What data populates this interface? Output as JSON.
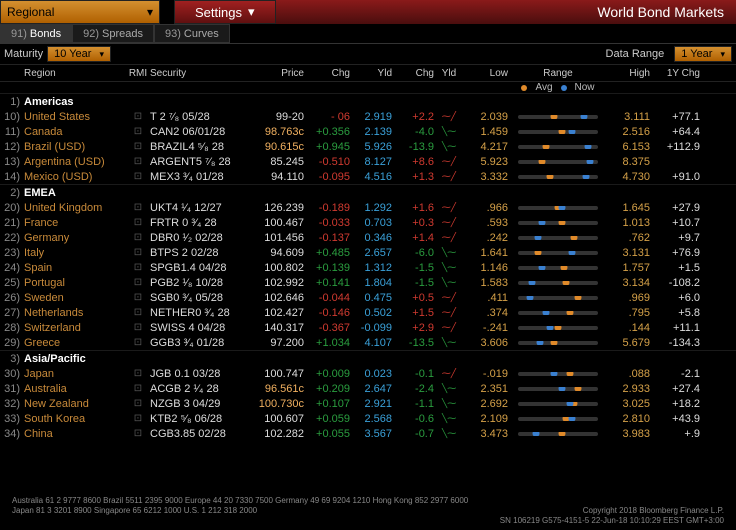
{
  "topbar": {
    "regional_label": "Regional",
    "settings_label": "Settings",
    "title": "World Bond Markets"
  },
  "tabs": {
    "bonds_idx": "91)",
    "bonds": "Bonds",
    "spreads_idx": "92)",
    "spreads": "Spreads",
    "curves_idx": "93)",
    "curves": "Curves"
  },
  "subbar": {
    "maturity_label": "Maturity",
    "maturity_value": "10 Year",
    "data_range_label": "Data Range",
    "data_range_value": "1 Year"
  },
  "legend": {
    "avg": "Avg",
    "now": "Now"
  },
  "columns": {
    "region": "Region",
    "rmi": "RMI",
    "security": "Security",
    "price": "Price",
    "chg": "Chg",
    "yld": "Yld",
    "chg2": "Chg",
    "yld2": "Yld",
    "low": "Low",
    "range": "Range",
    "high": "High",
    "ychg": "1Y Chg"
  },
  "colors": {
    "region_text": "#c88a3a",
    "amber": "#d4a048",
    "green": "#2a9d3f",
    "red": "#d03a30",
    "blue": "#3aa0d8",
    "avg_dot": "#e08a2a",
    "now_dot": "#3a80d0",
    "bg": "#000000"
  },
  "groups": [
    {
      "idx": "1)",
      "name": "Americas",
      "rows": [
        {
          "idx": "10)",
          "region": "United States",
          "sec": "T 2 ⁷⁄₈ 05/28",
          "price": "99-20",
          "price_c": false,
          "chg": "- 06",
          "chg_sign": -1,
          "yld": "2.919",
          "chg2": "+2.2",
          "chg2_sign": 1,
          "spark": 1,
          "low": "2.039",
          "avg": 0.45,
          "now": 0.82,
          "high": "3.111",
          "ychg": "+77.1",
          "ychg_sign": 1
        },
        {
          "idx": "11)",
          "region": "Canada",
          "sec": "CAN2 06/01/28",
          "price": "98.763",
          "price_c": true,
          "chg": "+0.356",
          "chg_sign": 1,
          "yld": "2.139",
          "chg2": "-4.0",
          "chg2_sign": -1,
          "spark": -1,
          "low": "1.459",
          "avg": 0.55,
          "now": 0.68,
          "high": "2.516",
          "ychg": "+64.4",
          "ychg_sign": 1
        },
        {
          "idx": "12)",
          "region": "Brazil (USD)",
          "sec": "BRAZIL4 ⁵⁄₈ 28",
          "price": "90.615",
          "price_c": true,
          "chg": "+0.945",
          "chg_sign": 1,
          "yld": "5.926",
          "chg2": "-13.9",
          "chg2_sign": -1,
          "spark": -1,
          "low": "4.217",
          "avg": 0.35,
          "now": 0.88,
          "high": "6.153",
          "ychg": "+112.9",
          "ychg_sign": 1
        },
        {
          "idx": "13)",
          "region": "Argentina (USD)",
          "sec": "ARGENT5 ⁷⁄₈ 28",
          "price": "85.245",
          "price_c": false,
          "chg": "-0.510",
          "chg_sign": -1,
          "yld": "8.127",
          "chg2": "+8.6",
          "chg2_sign": 1,
          "spark": 1,
          "low": "5.923",
          "avg": 0.3,
          "now": 0.9,
          "high": "8.375",
          "ychg": "",
          "ychg_sign": 0
        },
        {
          "idx": "14)",
          "region": "Mexico (USD)",
          "sec": "MEX3 ³⁄₄ 01/28",
          "price": "94.110",
          "price_c": false,
          "chg": "-0.095",
          "chg_sign": -1,
          "yld": "4.516",
          "chg2": "+1.3",
          "chg2_sign": 1,
          "spark": 1,
          "low": "3.332",
          "avg": 0.4,
          "now": 0.85,
          "high": "4.730",
          "ychg": "+91.0",
          "ychg_sign": 1
        }
      ]
    },
    {
      "idx": "2)",
      "name": "EMEA",
      "rows": [
        {
          "idx": "20)",
          "region": "United Kingdom",
          "sec": "UKT4 ¹⁄₄ 12/27",
          "price": "126.239",
          "price_c": false,
          "chg": "-0.189",
          "chg_sign": -1,
          "yld": "1.292",
          "chg2": "+1.6",
          "chg2_sign": 1,
          "spark": 1,
          "low": ".966",
          "avg": 0.5,
          "now": 0.55,
          "high": "1.645",
          "ychg": "+27.9",
          "ychg_sign": 1
        },
        {
          "idx": "21)",
          "region": "France",
          "sec": "FRTR 0 ³⁄₄ 28",
          "price": "100.467",
          "price_c": false,
          "chg": "-0.033",
          "chg_sign": -1,
          "yld": "0.703",
          "chg2": "+0.3",
          "chg2_sign": 1,
          "spark": 1,
          "low": ".593",
          "avg": 0.55,
          "now": 0.3,
          "high": "1.013",
          "ychg": "+10.7",
          "ychg_sign": 1
        },
        {
          "idx": "22)",
          "region": "Germany",
          "sec": "DBR0 ¹⁄₂ 02/28",
          "price": "101.456",
          "price_c": false,
          "chg": "-0.137",
          "chg_sign": -1,
          "yld": "0.346",
          "chg2": "+1.4",
          "chg2_sign": 1,
          "spark": 1,
          "low": ".242",
          "avg": 0.7,
          "now": 0.25,
          "high": ".762",
          "ychg": "+9.7",
          "ychg_sign": 1
        },
        {
          "idx": "23)",
          "region": "Italy",
          "sec": "BTPS 2 02/28",
          "price": "94.609",
          "price_c": false,
          "chg": "+0.485",
          "chg_sign": 1,
          "yld": "2.657",
          "chg2": "-6.0",
          "chg2_sign": -1,
          "spark": -1,
          "low": "1.641",
          "avg": 0.25,
          "now": 0.68,
          "high": "3.131",
          "ychg": "+76.9",
          "ychg_sign": 1
        },
        {
          "idx": "24)",
          "region": "Spain",
          "sec": "SPGB1.4 04/28",
          "price": "100.802",
          "price_c": false,
          "chg": "+0.139",
          "chg_sign": 1,
          "yld": "1.312",
          "chg2": "-1.5",
          "chg2_sign": -1,
          "spark": -1,
          "low": "1.146",
          "avg": 0.58,
          "now": 0.3,
          "high": "1.757",
          "ychg": "+1.5",
          "ychg_sign": 1
        },
        {
          "idx": "25)",
          "region": "Portugal",
          "sec": "PGB2 ¹⁄₈ 10/28",
          "price": "102.992",
          "price_c": false,
          "chg": "+0.141",
          "chg_sign": 1,
          "yld": "1.804",
          "chg2": "-1.5",
          "chg2_sign": -1,
          "spark": -1,
          "low": "1.583",
          "avg": 0.6,
          "now": 0.18,
          "high": "3.134",
          "ychg": "-108.2",
          "ychg_sign": -1
        },
        {
          "idx": "26)",
          "region": "Sweden",
          "sec": "SGB0 ³⁄₄ 05/28",
          "price": "102.646",
          "price_c": false,
          "chg": "-0.044",
          "chg_sign": -1,
          "yld": "0.475",
          "chg2": "+0.5",
          "chg2_sign": 1,
          "spark": 1,
          "low": ".411",
          "avg": 0.75,
          "now": 0.15,
          "high": ".969",
          "ychg": "+6.0",
          "ychg_sign": 1
        },
        {
          "idx": "27)",
          "region": "Netherlands",
          "sec": "NETHER0 ³⁄₄ 28",
          "price": "102.427",
          "price_c": false,
          "chg": "-0.146",
          "chg_sign": -1,
          "yld": "0.502",
          "chg2": "+1.5",
          "chg2_sign": 1,
          "spark": 1,
          "low": ".374",
          "avg": 0.65,
          "now": 0.35,
          "high": ".795",
          "ychg": "+5.8",
          "ychg_sign": 1
        },
        {
          "idx": "28)",
          "region": "Switzerland",
          "sec": "SWISS 4 04/28",
          "price": "140.317",
          "price_c": false,
          "chg": "-0.367",
          "chg_sign": -1,
          "yld": "-0.099",
          "chg2": "+2.9",
          "chg2_sign": 1,
          "spark": 1,
          "low": "-.241",
          "avg": 0.5,
          "now": 0.4,
          "high": ".144",
          "ychg": "+11.1",
          "ychg_sign": 1
        },
        {
          "idx": "29)",
          "region": "Greece",
          "sec": "GGB3 ³⁄₄ 01/28",
          "price": "97.200",
          "price_c": false,
          "chg": "+1.034",
          "chg_sign": 1,
          "yld": "4.107",
          "chg2": "-13.5",
          "chg2_sign": -1,
          "spark": -1,
          "low": "3.606",
          "avg": 0.45,
          "now": 0.28,
          "high": "5.679",
          "ychg": "-134.3",
          "ychg_sign": -1
        }
      ]
    },
    {
      "idx": "3)",
      "name": "Asia/Pacific",
      "rows": [
        {
          "idx": "30)",
          "region": "Japan",
          "sec": "JGB 0.1 03/28",
          "price": "100.747",
          "price_c": false,
          "chg": "+0.009",
          "chg_sign": 1,
          "yld": "0.023",
          "chg2": "-0.1",
          "chg2_sign": -1,
          "spark": 1,
          "low": "-.019",
          "avg": 0.65,
          "now": 0.45,
          "high": ".088",
          "ychg": "-2.1",
          "ychg_sign": -1
        },
        {
          "idx": "31)",
          "region": "Australia",
          "sec": "ACGB 2 ¹⁄₄ 28",
          "price": "96.561",
          "price_c": true,
          "chg": "+0.209",
          "chg_sign": 1,
          "yld": "2.647",
          "chg2": "-2.4",
          "chg2_sign": -1,
          "spark": -1,
          "low": "2.351",
          "avg": 0.75,
          "now": 0.55,
          "high": "2.933",
          "ychg": "+27.4",
          "ychg_sign": 1
        },
        {
          "idx": "32)",
          "region": "New Zealand",
          "sec": "NZGB 3 04/29",
          "price": "100.730",
          "price_c": true,
          "chg": "+0.107",
          "chg_sign": 1,
          "yld": "2.921",
          "chg2": "-1.1",
          "chg2_sign": -1,
          "spark": -1,
          "low": "2.692",
          "avg": 0.7,
          "now": 0.65,
          "high": "3.025",
          "ychg": "+18.2",
          "ychg_sign": 1
        },
        {
          "idx": "33)",
          "region": "South Korea",
          "sec": "KTB2 ⁵⁄₈ 06/28",
          "price": "100.607",
          "price_c": false,
          "chg": "+0.059",
          "chg_sign": 1,
          "yld": "2.568",
          "chg2": "-0.6",
          "chg2_sign": -1,
          "spark": -1,
          "low": "2.109",
          "avg": 0.6,
          "now": 0.68,
          "high": "2.810",
          "ychg": "+43.9",
          "ychg_sign": 1
        },
        {
          "idx": "34)",
          "region": "China",
          "sec": "CGB3.85 02/28",
          "price": "102.282",
          "price_c": false,
          "chg": "+0.055",
          "chg_sign": 1,
          "yld": "3.567",
          "chg2": "-0.7",
          "chg2_sign": -1,
          "spark": -1,
          "low": "3.473",
          "avg": 0.55,
          "now": 0.22,
          "high": "3.983",
          "ychg": "+.9",
          "ychg_sign": 1
        }
      ]
    }
  ],
  "footer": {
    "line1": "Australia 61 2 9777 8600 Brazil 5511 2395 9000 Europe 44 20 7330 7500 Germany 49 69 9204 1210 Hong Kong 852 2977 6000",
    "line2a": "Japan 81 3 3201 8900        Singapore 65 6212 1000        U.S. 1 212 318 2000",
    "line2b": "Copyright 2018 Bloomberg Finance L.P.",
    "line3": "SN 106219 G575-4151-5 22-Jun-18 10:10:29 EEST GMT+3:00"
  }
}
